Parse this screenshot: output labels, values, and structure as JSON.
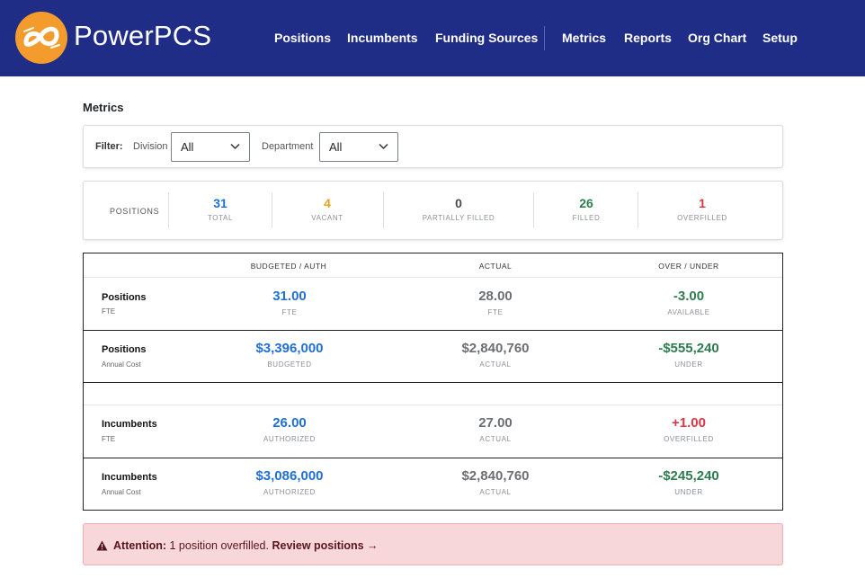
{
  "brand": {
    "name": "PowerPCS"
  },
  "nav": {
    "positions": "Positions",
    "incumbents": "Incumbents",
    "funding_sources": "Funding Sources",
    "metrics": "Metrics",
    "reports": "Reports",
    "org_chart": "Org Chart",
    "setup": "Setup"
  },
  "page": {
    "title": "Metrics"
  },
  "filter": {
    "label": "Filter:",
    "division_label": "Division",
    "division_value": "All",
    "department_label": "Department",
    "department_value": "All"
  },
  "positions_summary": {
    "label": "POSITIONS",
    "stats": [
      {
        "value": "31",
        "label": "TOTAL",
        "color": "#1f6fd6"
      },
      {
        "value": "4",
        "label": "VACANT",
        "color": "#e8a317"
      },
      {
        "value": "0",
        "label": "PARTIALLY FILLED",
        "color": "#454a50"
      },
      {
        "value": "26",
        "label": "FILLED",
        "color": "#2e7d4f"
      },
      {
        "value": "1",
        "label": "OVERFILLED",
        "color": "#dc3545"
      }
    ]
  },
  "metrics_table": {
    "headers": [
      "BUDGETED / AUTH",
      "ACTUAL",
      "OVER / UNDER"
    ],
    "rows": [
      {
        "title": "Positions",
        "sub": "FTE",
        "budgeted": "31.00",
        "budgeted_label": "FTE",
        "actual": "28.00",
        "actual_label": "FTE",
        "diff": "-3.00",
        "diff_label": "AVAILABLE"
      },
      {
        "title": "Positions",
        "sub": "Annual Cost",
        "budgeted": "$3,396,000",
        "budgeted_label": "BUDGETED",
        "actual": "$2,840,760",
        "actual_label": "ACTUAL",
        "diff": "-$555,240",
        "diff_label": "UNDER"
      },
      {
        "title": "Incumbents",
        "sub": "FTE",
        "budgeted": "26.00",
        "budgeted_label": "AUTHORIZED",
        "actual": "27.00",
        "actual_label": "ACTUAL",
        "diff": "+1.00",
        "diff_label": "OVERFILLED"
      },
      {
        "title": "Incumbents",
        "sub": "Annual Cost",
        "budgeted": "$3,086,000",
        "budgeted_label": "AUTHORIZED",
        "actual": "$2,840,760",
        "actual_label": "ACTUAL",
        "diff": "-$245,240",
        "diff_label": "UNDER"
      }
    ]
  },
  "alert": {
    "prefix": "Attention:",
    "message": "1 position overfilled.",
    "link": "Review positions →"
  },
  "icons": {
    "logo": "infinity-logo-icon",
    "dropdown": "chevron-down-icon",
    "alert": "warning-triangle-icon"
  }
}
